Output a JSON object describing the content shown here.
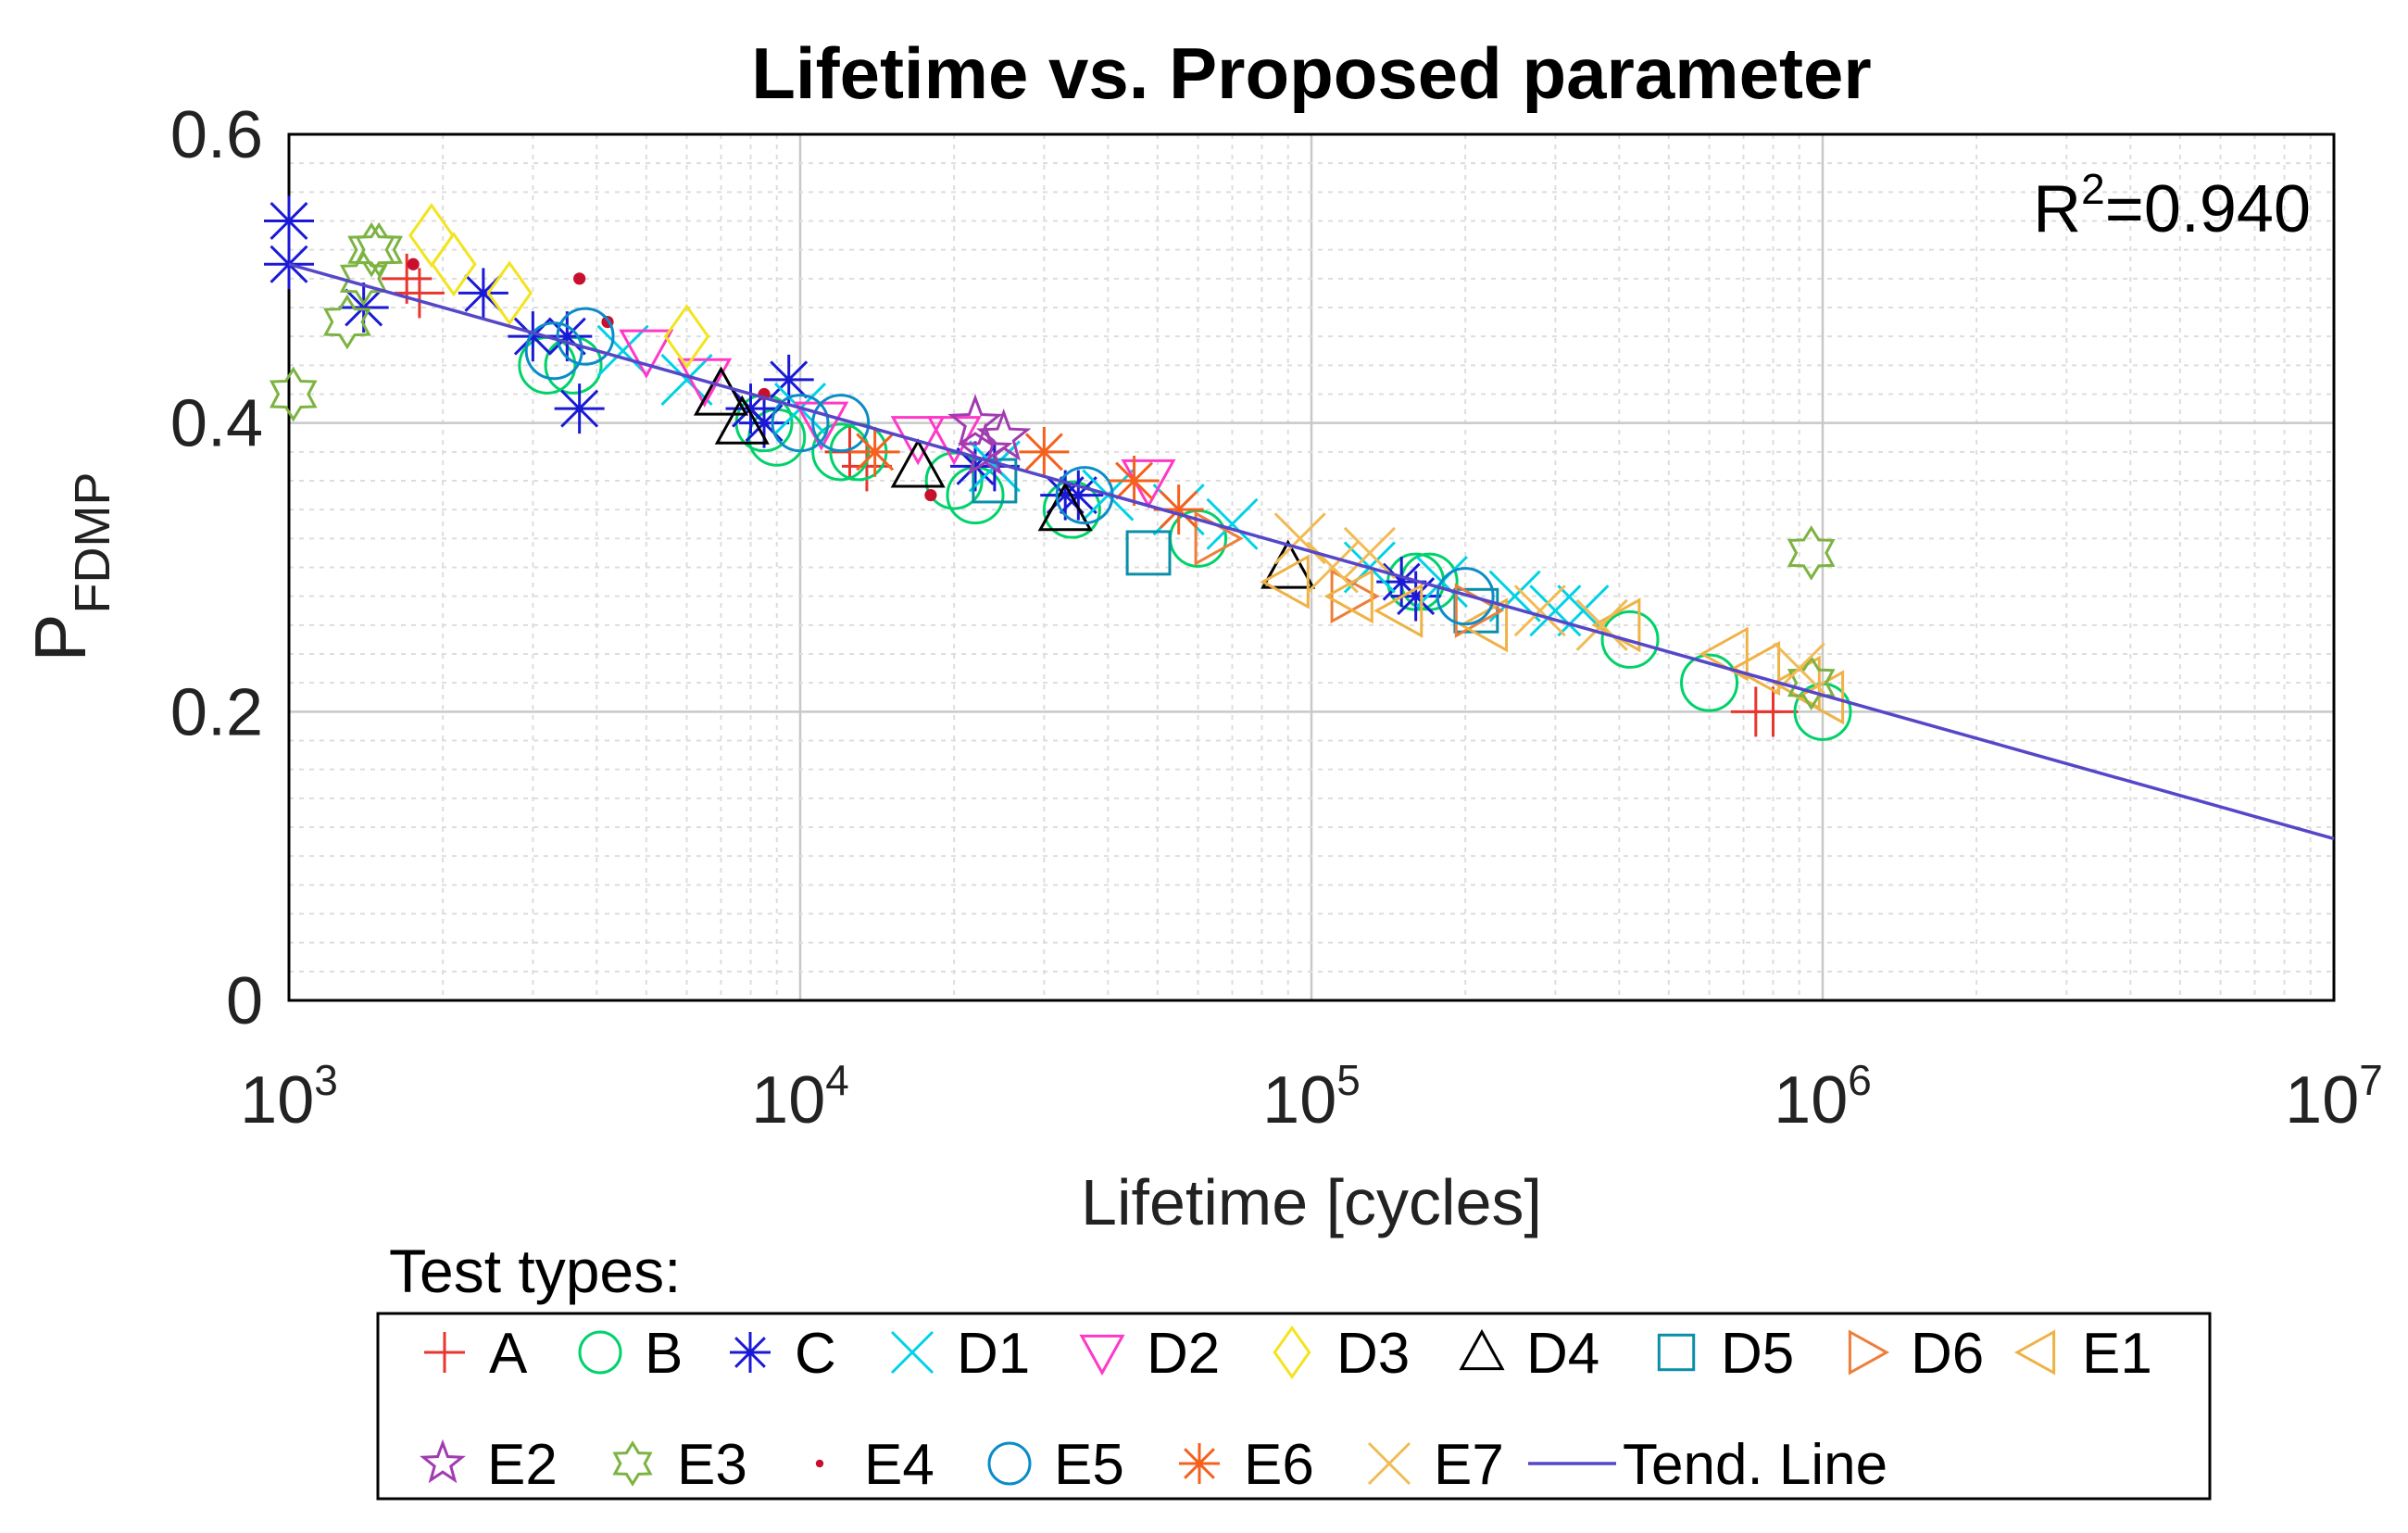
{
  "chart_data": {
    "type": "scatter",
    "title": "Lifetime vs. Proposed parameter",
    "xlabel": "Lifetime [cycles]",
    "ylabel": "P",
    "ylabel_subscript": "FDMP",
    "xscale": "log",
    "xlim": [
      1000,
      10000000
    ],
    "ylim": [
      0,
      0.6
    ],
    "x_ticks": [
      {
        "base": "10",
        "exp": "3"
      },
      {
        "base": "10",
        "exp": "4"
      },
      {
        "base": "10",
        "exp": "5"
      },
      {
        "base": "10",
        "exp": "6"
      },
      {
        "base": "10",
        "exp": "7"
      }
    ],
    "y_ticks": [
      "0",
      "0.2",
      "0.4",
      "0.6"
    ],
    "grid": true,
    "annotation": {
      "prefix": "R",
      "sup": "2",
      "value": "=0.940"
    },
    "legend_title": "Test types:",
    "series": [
      {
        "name": "A",
        "marker": "plus",
        "color": "#e8362d",
        "points": [
          [
            1700,
            0.5
          ],
          [
            1800,
            0.49
          ],
          [
            12500,
            0.38
          ],
          [
            13500,
            0.37
          ],
          [
            740000,
            0.2
          ],
          [
            800000,
            0.2
          ]
        ]
      },
      {
        "name": "B",
        "marker": "circle",
        "color": "#00d26a",
        "points": [
          [
            3200,
            0.44
          ],
          [
            3600,
            0.44
          ],
          [
            8500,
            0.4
          ],
          [
            9000,
            0.39
          ],
          [
            12000,
            0.38
          ],
          [
            13000,
            0.38
          ],
          [
            20000,
            0.36
          ],
          [
            22000,
            0.35
          ],
          [
            34000,
            0.34
          ],
          [
            60000,
            0.32
          ],
          [
            160000,
            0.29
          ],
          [
            170000,
            0.29
          ],
          [
            420000,
            0.25
          ],
          [
            600000,
            0.22
          ],
          [
            1000000,
            0.2
          ]
        ]
      },
      {
        "name": "C",
        "marker": "asterisk",
        "color": "#1a1ad6",
        "points": [
          [
            1000,
            0.54
          ],
          [
            1000,
            0.51
          ],
          [
            1400,
            0.48
          ],
          [
            2400,
            0.49
          ],
          [
            3000,
            0.46
          ],
          [
            3500,
            0.46
          ],
          [
            3700,
            0.41
          ],
          [
            8000,
            0.41
          ],
          [
            8500,
            0.4
          ],
          [
            9500,
            0.43
          ],
          [
            22000,
            0.37
          ],
          [
            24000,
            0.37
          ],
          [
            33000,
            0.35
          ],
          [
            35000,
            0.35
          ],
          [
            150000,
            0.29
          ],
          [
            160000,
            0.28
          ]
        ]
      },
      {
        "name": "D1",
        "marker": "cross",
        "color": "#00d2e6",
        "points": [
          [
            4500,
            0.45
          ],
          [
            6000,
            0.43
          ],
          [
            10000,
            0.41
          ],
          [
            24000,
            0.37
          ],
          [
            40000,
            0.35
          ],
          [
            55000,
            0.34
          ],
          [
            70000,
            0.33
          ],
          [
            130000,
            0.3
          ],
          [
            180000,
            0.29
          ],
          [
            250000,
            0.28
          ],
          [
            300000,
            0.27
          ],
          [
            340000,
            0.27
          ]
        ]
      },
      {
        "name": "D2",
        "marker": "triangle-down",
        "color": "#ff38c8",
        "points": [
          [
            5000,
            0.45
          ],
          [
            6500,
            0.43
          ],
          [
            11000,
            0.4
          ],
          [
            17000,
            0.39
          ],
          [
            20000,
            0.39
          ],
          [
            48000,
            0.36
          ]
        ]
      },
      {
        "name": "D3",
        "marker": "diamond",
        "color": "#f2e41e",
        "points": [
          [
            1900,
            0.53
          ],
          [
            2100,
            0.51
          ],
          [
            2700,
            0.49
          ],
          [
            6000,
            0.46
          ]
        ]
      },
      {
        "name": "D4",
        "marker": "triangle-up",
        "color": "#000000",
        "points": [
          [
            7000,
            0.42
          ],
          [
            7700,
            0.4
          ],
          [
            17000,
            0.37
          ],
          [
            33000,
            0.34
          ],
          [
            90000,
            0.3
          ]
        ]
      },
      {
        "name": "D5",
        "marker": "square",
        "color": "#0a8fa8",
        "points": [
          [
            24000,
            0.36
          ],
          [
            48000,
            0.31
          ],
          [
            210000,
            0.27
          ]
        ]
      },
      {
        "name": "D6",
        "marker": "triangle-right",
        "color": "#ee7e3a",
        "points": [
          [
            65000,
            0.32
          ],
          [
            120000,
            0.28
          ],
          [
            210000,
            0.27
          ]
        ]
      },
      {
        "name": "E1",
        "marker": "triangle-left",
        "color": "#eeb245",
        "points": [
          [
            90000,
            0.29
          ],
          [
            120000,
            0.28
          ],
          [
            150000,
            0.27
          ],
          [
            220000,
            0.26
          ],
          [
            400000,
            0.26
          ],
          [
            650000,
            0.24
          ],
          [
            750000,
            0.23
          ],
          [
            900000,
            0.22
          ],
          [
            1000000,
            0.21
          ]
        ]
      },
      {
        "name": "E2",
        "marker": "star5",
        "color": "#a03cb0",
        "points": [
          [
            22000,
            0.4
          ],
          [
            23000,
            0.38
          ],
          [
            25000,
            0.39
          ]
        ]
      },
      {
        "name": "E3",
        "marker": "hexagram",
        "color": "#7cb342",
        "points": [
          [
            1020,
            0.42
          ],
          [
            1300,
            0.47
          ],
          [
            1400,
            0.5
          ],
          [
            1450,
            0.52
          ],
          [
            1500,
            0.52
          ],
          [
            950000,
            0.31
          ],
          [
            950000,
            0.22
          ]
        ]
      },
      {
        "name": "E4",
        "marker": "dot",
        "color": "#c8102e",
        "points": [
          [
            1750,
            0.51
          ],
          [
            3700,
            0.5
          ],
          [
            4200,
            0.47
          ],
          [
            8500,
            0.42
          ],
          [
            18000,
            0.35
          ]
        ]
      },
      {
        "name": "E5",
        "marker": "circle",
        "color": "#0b8cc8",
        "points": [
          [
            3300,
            0.45
          ],
          [
            3800,
            0.46
          ],
          [
            10000,
            0.4
          ],
          [
            12000,
            0.4
          ],
          [
            36000,
            0.35
          ],
          [
            200000,
            0.28
          ]
        ]
      },
      {
        "name": "E6",
        "marker": "asterisk",
        "color": "#f5601d",
        "points": [
          [
            14000,
            0.38
          ],
          [
            30000,
            0.38
          ],
          [
            45000,
            0.36
          ],
          [
            55000,
            0.34
          ]
        ]
      },
      {
        "name": "E7",
        "marker": "cross",
        "color": "#f1bb55",
        "points": [
          [
            95000,
            0.32
          ],
          [
            110000,
            0.3
          ],
          [
            130000,
            0.31
          ],
          [
            280000,
            0.27
          ],
          [
            370000,
            0.26
          ],
          [
            900000,
            0.23
          ]
        ]
      }
    ],
    "trend_line": {
      "name": "Tend. Line",
      "color": "#5646c8",
      "points": [
        [
          1000,
          0.51
        ],
        [
          10000000,
          0.112
        ]
      ]
    }
  }
}
